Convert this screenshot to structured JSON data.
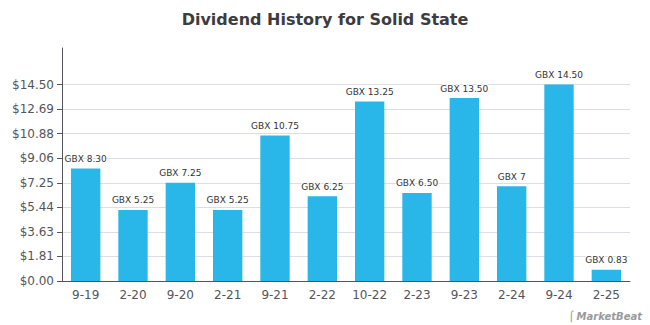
{
  "chart_data": {
    "type": "bar",
    "title": "Dividend History for Solid State",
    "categories": [
      "9-19",
      "2-20",
      "9-20",
      "2-21",
      "9-21",
      "2-22",
      "10-22",
      "2-23",
      "9-23",
      "2-24",
      "9-24",
      "2-25"
    ],
    "values": [
      8.3,
      5.25,
      7.25,
      5.25,
      10.75,
      6.25,
      13.25,
      6.5,
      13.5,
      7.0,
      14.5,
      0.83
    ],
    "value_labels": [
      "GBX 8.30",
      "GBX 5.25",
      "GBX 7.25",
      "GBX 5.25",
      "GBX 10.75",
      "GBX 6.25",
      "GBX 13.25",
      "GBX 6.50",
      "GBX 13.50",
      "GBX 7",
      "GBX 14.50",
      "GBX 0.83"
    ],
    "data_labels": true,
    "color": "#29b6e8",
    "ylim": [
      0,
      17.2
    ],
    "yticks": [
      {
        "value": 0.0,
        "label": "$0.00"
      },
      {
        "value": 1.81,
        "label": "$1.81"
      },
      {
        "value": 3.63,
        "label": "$3.63"
      },
      {
        "value": 5.44,
        "label": "$5.44"
      },
      {
        "value": 7.25,
        "label": "$7.25"
      },
      {
        "value": 9.06,
        "label": "$9.06"
      },
      {
        "value": 10.88,
        "label": "$10.88"
      },
      {
        "value": 12.69,
        "label": "$12.69"
      },
      {
        "value": 14.5,
        "label": "$14.50"
      }
    ],
    "grid": true,
    "annotations": [
      "⌠",
      "MarketBeat"
    ]
  }
}
